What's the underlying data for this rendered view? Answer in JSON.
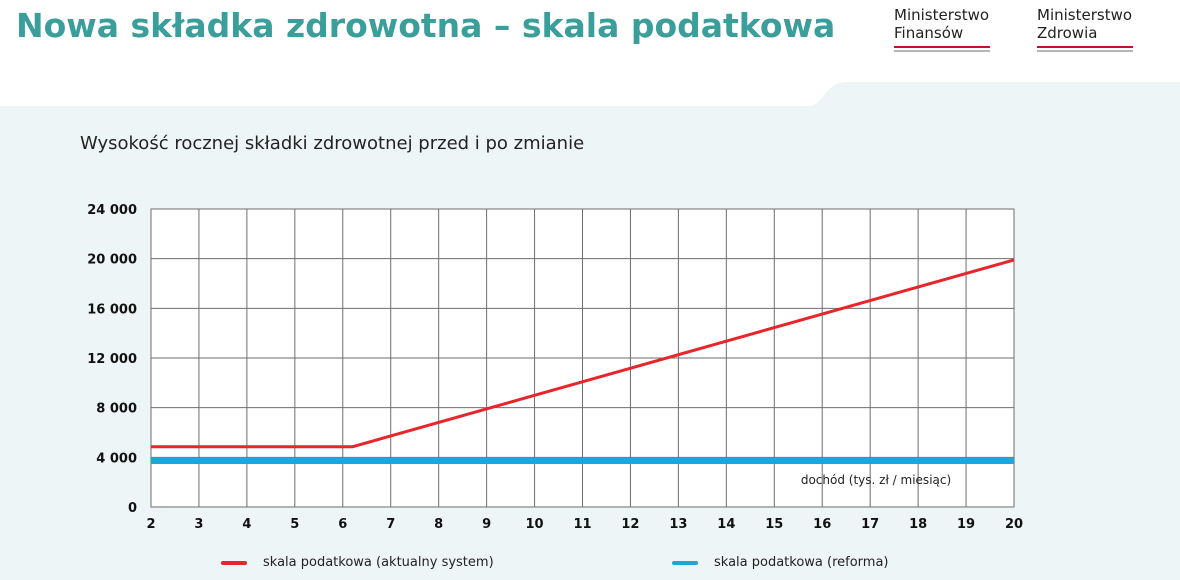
{
  "header": {
    "title": "Nowa składka zdrowotna – skala podatkowa",
    "logos": [
      {
        "line1": "Ministerstwo",
        "line2": "Finansów"
      },
      {
        "line1": "Ministerstwo",
        "line2": "Zdrowia"
      }
    ]
  },
  "colors": {
    "title": "#3a9e9a",
    "panel": "#eef5f6",
    "grid": "#6e6e6e",
    "current": "#e8252a",
    "reform": "#1aa7dc",
    "logo_red": "#c8102e"
  },
  "chart_data": {
    "type": "line",
    "title": "Wysokość rocznej składki zdrowotnej przed i po zmianie",
    "xlabel": "dochód (tys. zł / miesiąc)",
    "ylabel": "",
    "x": [
      2,
      3,
      4,
      5,
      6,
      7,
      8,
      9,
      10,
      11,
      12,
      13,
      14,
      15,
      16,
      17,
      18,
      19,
      20
    ],
    "xlim": [
      2,
      20
    ],
    "ylim": [
      0,
      24000
    ],
    "yticks": [
      0,
      4000,
      8000,
      12000,
      16000,
      20000,
      24000
    ],
    "ytick_labels": [
      "0",
      "4 000",
      "8 000",
      "12 000",
      "16 000",
      "20 000",
      "24 000"
    ],
    "xtick_labels": [
      "2",
      "3",
      "4",
      "5",
      "6",
      "7",
      "8",
      "9",
      "10",
      "11",
      "12",
      "13",
      "14",
      "15",
      "16",
      "17",
      "18",
      "19",
      "20"
    ],
    "grid": true,
    "legend_position": "bottom",
    "series": [
      {
        "name": "skala podatkowa (aktualny system)",
        "color": "#e8252a",
        "points": [
          [
            2,
            4850
          ],
          [
            6.2,
            4850
          ],
          [
            20,
            19900
          ]
        ]
      },
      {
        "name": "skala podatkowa (reforma)",
        "color": "#1aa7dc",
        "points": [
          [
            2,
            3700
          ],
          [
            20,
            3700
          ]
        ]
      }
    ]
  }
}
